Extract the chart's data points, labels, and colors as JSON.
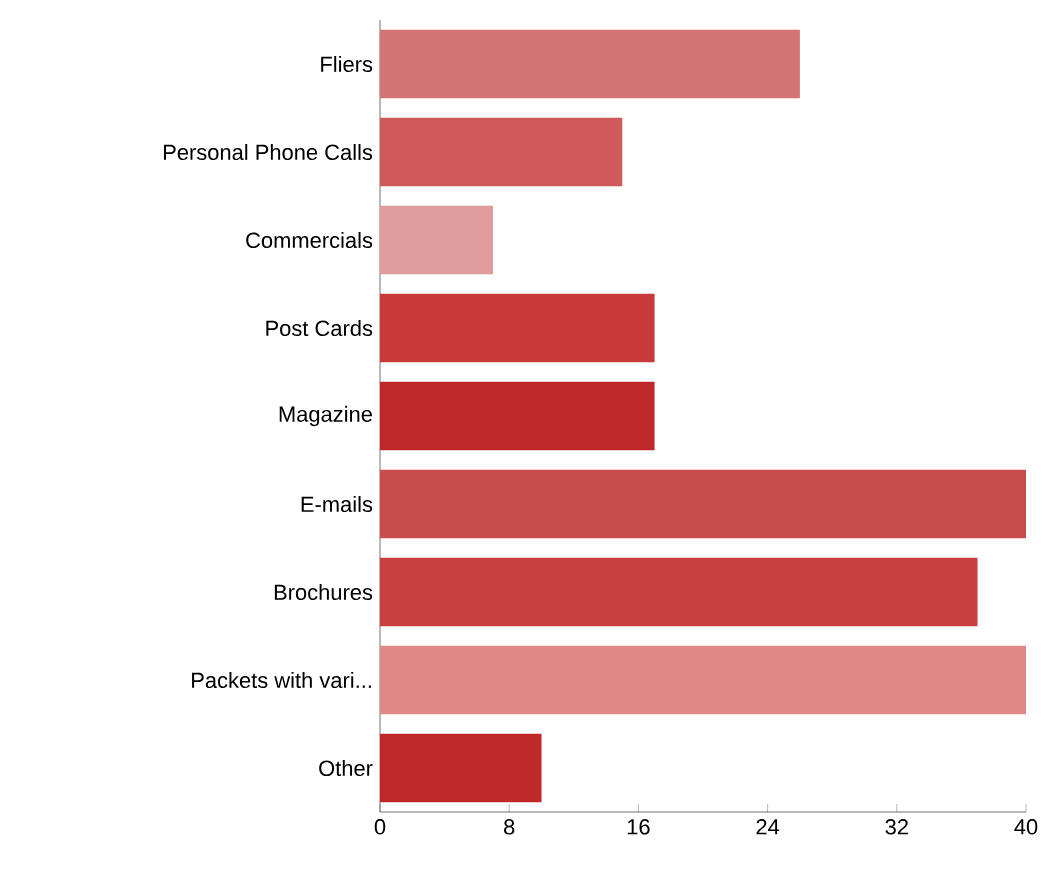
{
  "chart_data": {
    "type": "bar",
    "orientation": "horizontal",
    "categories": [
      "Fliers",
      "Personal Phone Calls",
      "Commercials",
      "Post Cards",
      "Magazine",
      "E-mails",
      "Brochures",
      "Packets with vari...",
      "Other"
    ],
    "values": [
      26,
      15,
      7,
      17,
      17,
      40,
      37,
      40,
      10
    ],
    "colors": [
      "#d57474",
      "#d05a5a",
      "#e09c9c",
      "#c9393a",
      "#c0292b",
      "#c94c4c",
      "#c84040",
      "#de8888",
      "#c0292b"
    ],
    "xlim": [
      0,
      40
    ],
    "xticks": [
      0,
      8,
      16,
      24,
      32,
      40
    ]
  }
}
